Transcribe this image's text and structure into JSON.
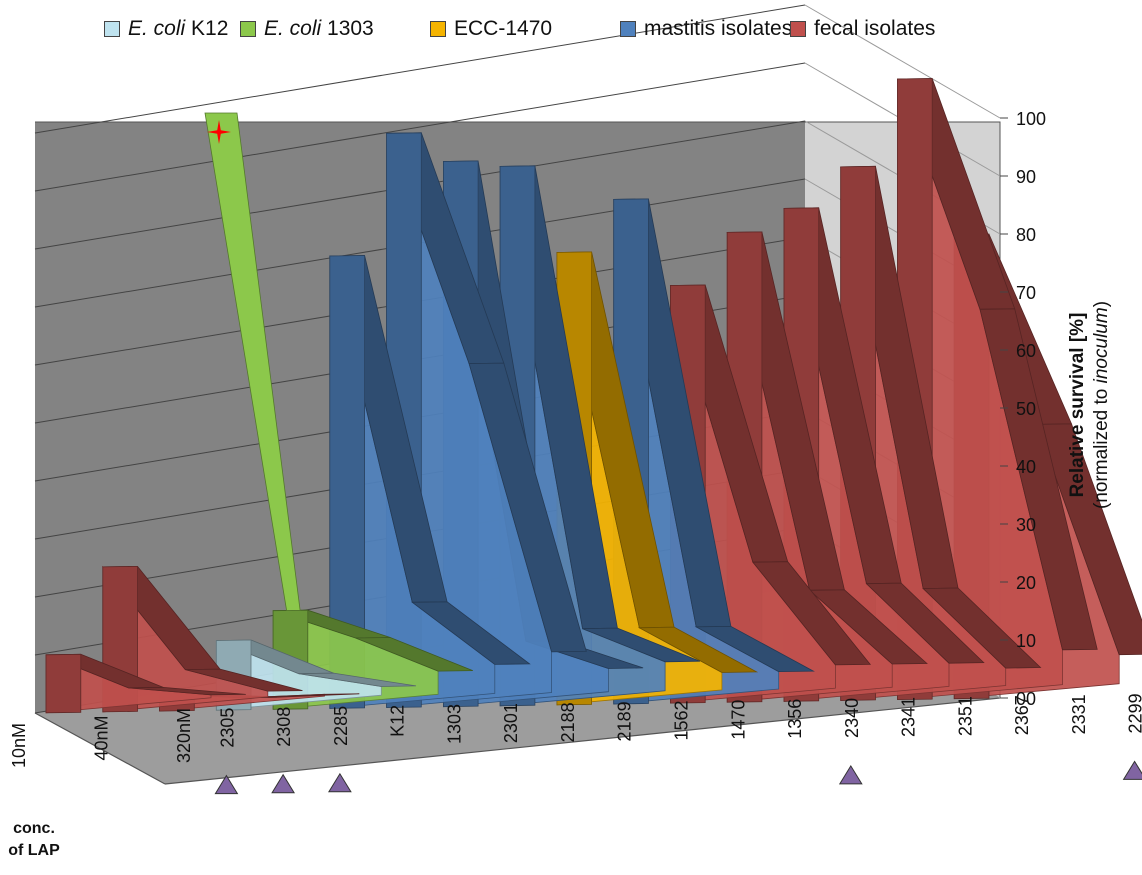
{
  "legend": [
    {
      "italic": "E. coli",
      "rest": " K12",
      "color": "#bfe3ef"
    },
    {
      "italic": "E. coli",
      "rest": " 1303",
      "color": "#8cc84b"
    },
    {
      "italic": "",
      "rest": "ECC-1470",
      "color": "#f5b400"
    },
    {
      "italic": "",
      "rest": "mastitis isolates",
      "color": "#4f81bd"
    },
    {
      "italic": "",
      "rest": "fecal isolates",
      "color": "#c0504d"
    }
  ],
  "y_axis_label": {
    "bold": "Relative  survival [%]",
    "normal": "(normalized to ",
    "italic": "inoculum",
    "close": ")"
  },
  "conc_axis_label": "conc. of LAP",
  "chart_data": {
    "type": "area",
    "style": "3d",
    "grid": true,
    "y_label": "Relative survival [%] (normalized to inoculum)",
    "y_ticks": [
      "00",
      "10",
      "20",
      "30",
      "40",
      "50",
      "60",
      "70",
      "80",
      "90",
      "100"
    ],
    "ylim": [
      0,
      100
    ],
    "depth_label": "conc. of LAP",
    "concentrations": [
      "10nM",
      "40nM",
      "320nM"
    ],
    "strains": [
      {
        "name": "2305",
        "group": "fecal isolates",
        "color": "#c0504d",
        "marked": true,
        "values": [
          10,
          3,
          0.5
        ]
      },
      {
        "name": "2308",
        "group": "fecal isolates",
        "color": "#c0504d",
        "marked": true,
        "values": [
          25,
          6,
          1
        ]
      },
      {
        "name": "2285",
        "group": "fecal isolates",
        "color": "#c0504d",
        "marked": true,
        "values": [
          3,
          1,
          0.3
        ]
      },
      {
        "name": "K12",
        "group": "E. coli K12",
        "color": "#bfe3ef",
        "marked": false,
        "values": [
          12,
          5,
          1.5
        ]
      },
      {
        "name": "1303",
        "group": "E. coli 1303",
        "color": "#8cc84b",
        "marked": false,
        "values": [
          17,
          11,
          4
        ]
      },
      {
        "name": "2301",
        "group": "mastitis isolates",
        "color": "#4f81bd",
        "marked": false,
        "values": [
          78,
          17,
          5
        ]
      },
      {
        "name": "2188",
        "group": "mastitis isolates",
        "color": "#4f81bd",
        "marked": false,
        "values": [
          99,
          58,
          7
        ]
      },
      {
        "name": "2189",
        "group": "mastitis isolates",
        "color": "#4f81bd",
        "marked": false,
        "values": [
          94,
          10,
          4
        ]
      },
      {
        "name": "1562",
        "group": "mastitis isolates",
        "color": "#4f81bd",
        "marked": false,
        "values": [
          93,
          12,
          5
        ]
      },
      {
        "name": "1470",
        "group": "ECC-1470",
        "color": "#f5b400",
        "marked": false,
        "values": [
          78,
          12,
          3
        ]
      },
      {
        "name": "1356",
        "group": "mastitis isolates",
        "color": "#4f81bd",
        "marked": false,
        "values": [
          87,
          12,
          3
        ]
      },
      {
        "name": "2340",
        "group": "fecal isolates",
        "color": "#c0504d",
        "marked": true,
        "values": [
          72,
          23,
          4
        ]
      },
      {
        "name": "2341",
        "group": "fecal isolates",
        "color": "#c0504d",
        "marked": false,
        "values": [
          81,
          18,
          4
        ]
      },
      {
        "name": "2351",
        "group": "fecal isolates",
        "color": "#c0504d",
        "marked": false,
        "values": [
          85,
          19,
          4
        ]
      },
      {
        "name": "2367",
        "group": "fecal isolates",
        "color": "#c0504d",
        "marked": false,
        "values": [
          92,
          18,
          3
        ]
      },
      {
        "name": "2331",
        "group": "fecal isolates",
        "color": "#c0504d",
        "marked": false,
        "values": [
          107,
          66,
          6
        ]
      },
      {
        "name": "2299",
        "group": "fecal isolates",
        "color": "#c0504d",
        "marked": true,
        "values": [
          80,
          46,
          5
        ]
      }
    ],
    "special_strain": {
      "name": "1303",
      "concentration": "10nM",
      "value": 100,
      "marker": "red star",
      "marker_color": "#ff0000"
    }
  }
}
